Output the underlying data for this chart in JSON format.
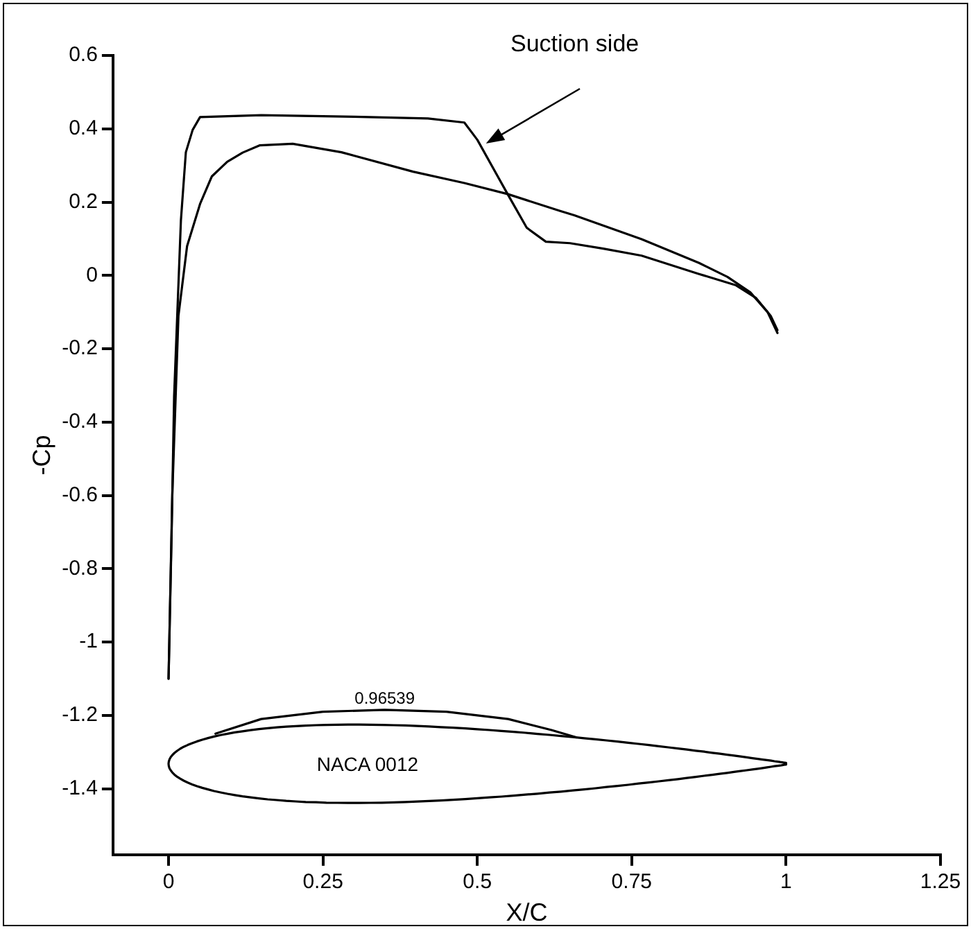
{
  "chart_data": {
    "type": "line",
    "xlabel": "X/C",
    "ylabel": "-Cp",
    "series": [
      {
        "color": "#000000",
        "x": [
          0,
          0.005,
          0.009,
          0.02,
          0.028,
          0.039,
          0.051,
          0.15,
          0.3,
          0.42,
          0.479,
          0.5,
          0.549,
          0.58,
          0.611,
          0.65,
          0.704,
          0.766,
          0.859,
          0.919,
          0.951,
          0.975,
          0.986
        ],
        "values": [
          -1.1,
          -0.7,
          -0.33,
          0.15,
          0.336,
          0.397,
          0.432,
          0.437,
          0.433,
          0.428,
          0.417,
          0.37,
          0.222,
          0.13,
          0.092,
          0.088,
          0.073,
          0.054,
          0.004,
          -0.027,
          -0.061,
          -0.11,
          -0.149
        ]
      },
      {
        "color": "#000000",
        "x": [
          0,
          0.006,
          0.016,
          0.03,
          0.051,
          0.07,
          0.095,
          0.12,
          0.148,
          0.201,
          0.28,
          0.396,
          0.479,
          0.549,
          0.634,
          0.657,
          0.766,
          0.859,
          0.905,
          0.942,
          0.97,
          0.986
        ],
        "values": [
          -1.1,
          -0.6,
          -0.11,
          0.08,
          0.195,
          0.27,
          0.31,
          0.335,
          0.355,
          0.359,
          0.336,
          0.283,
          0.252,
          0.222,
          0.176,
          0.164,
          0.099,
          0.034,
          -0.004,
          -0.046,
          -0.1,
          -0.157
        ]
      },
      {
        "name": "0.96539",
        "color": "#000000",
        "x": [
          0.076,
          0.15,
          0.25,
          0.35,
          0.45,
          0.55,
          0.62,
          0.66
        ],
        "values": [
          -1.25,
          -1.21,
          -1.19,
          -1.185,
          -1.19,
          -1.21,
          -1.24,
          -1.26
        ]
      }
    ],
    "xlim": [
      -0.09,
      1.25
    ],
    "xticks": [
      0,
      0.25,
      0.5,
      0.75,
      1,
      1.25
    ],
    "ylim": [
      -1.58,
      0.6
    ],
    "yticks": [
      -1.4,
      -1.2,
      -1,
      -0.8,
      -0.6,
      -0.4,
      -0.2,
      0,
      0.2,
      0.4,
      0.6
    ],
    "grid": false,
    "legend": false,
    "marker": "none",
    "line_style": "solid",
    "annotations": [
      "Suction side",
      "NACA 0012"
    ]
  }
}
